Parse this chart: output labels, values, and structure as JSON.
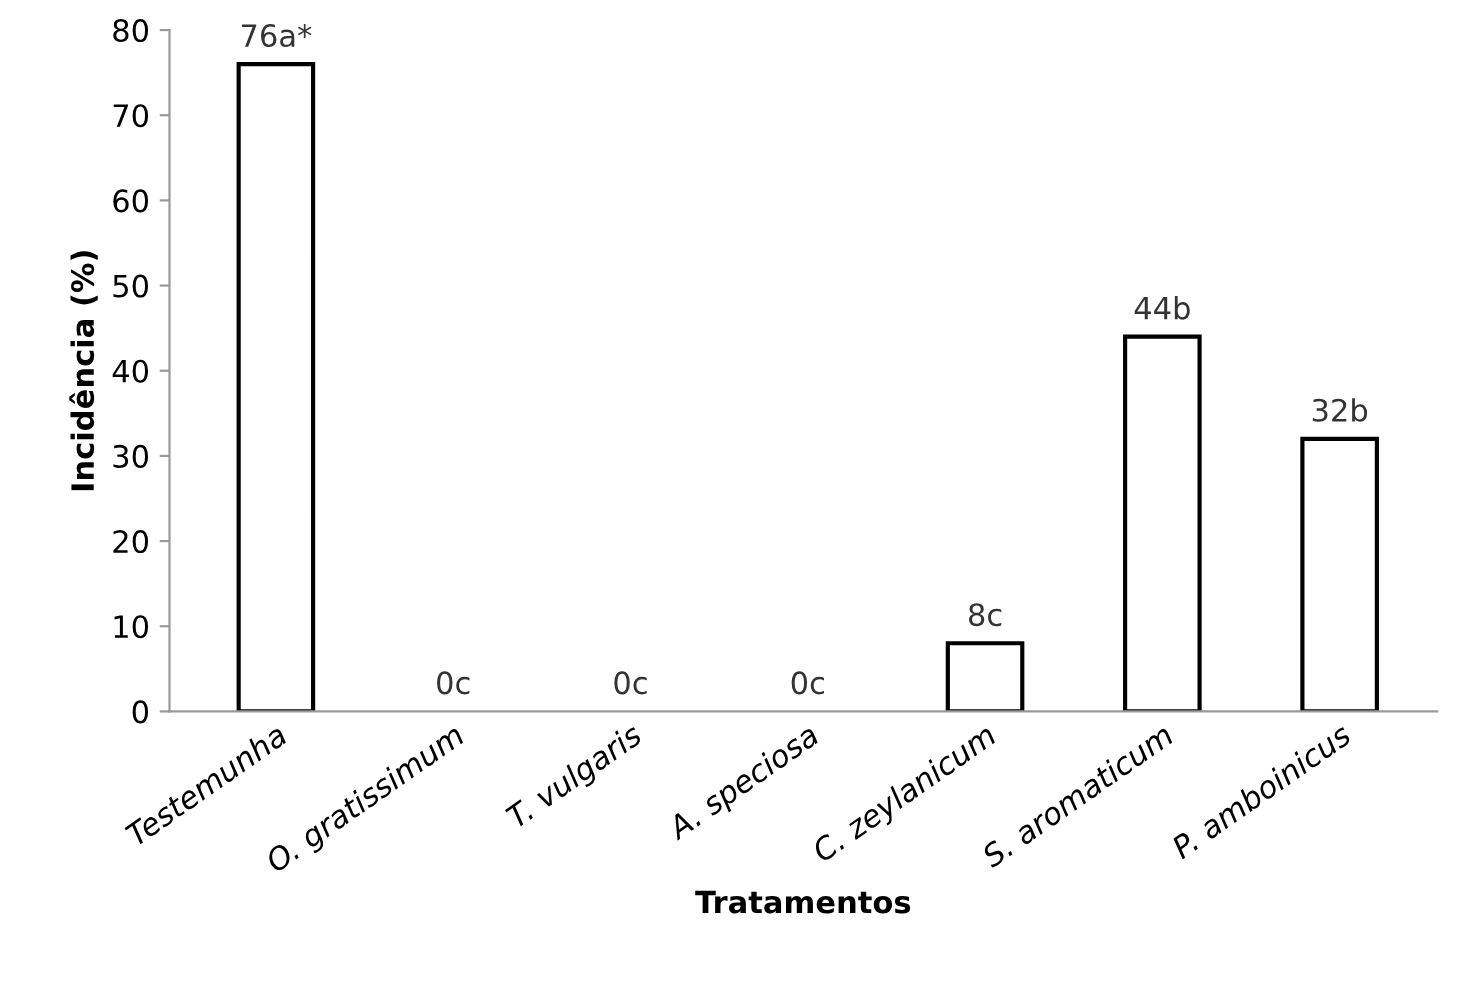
{
  "chart_data": {
    "type": "bar",
    "xlabel": "Tratamentos",
    "ylabel": "Incidência (%)",
    "categories": [
      "Testemunha",
      "O. gratissimum",
      "T. vulgaris",
      "A. speciosa",
      "C. zeylanicum",
      "S. aromaticum",
      "P. amboinicus"
    ],
    "values": [
      76,
      0,
      0,
      0,
      8,
      44,
      32
    ],
    "value_labels": [
      "76a*",
      "0c",
      "0c",
      "0c",
      "8c",
      "44b",
      "32b"
    ],
    "color": "#ffffff",
    "ylim": [
      0,
      80
    ],
    "yticks": [
      0,
      10,
      20,
      30,
      40,
      50,
      60,
      70,
      80
    ],
    "grid": false,
    "legend": false
  }
}
